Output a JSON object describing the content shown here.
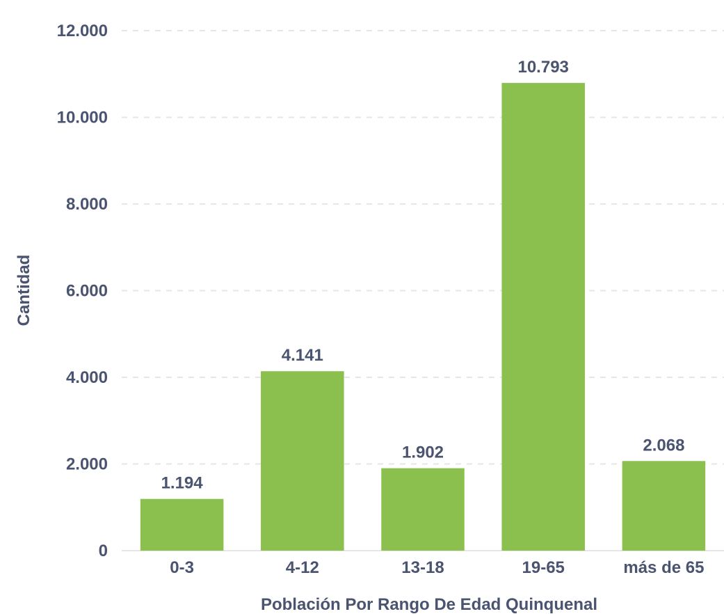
{
  "chart_data": {
    "type": "bar",
    "categories": [
      "0-3",
      "4-12",
      "13-18",
      "19-65",
      "más de 65"
    ],
    "values": [
      1194,
      4141,
      1902,
      10793,
      2068
    ],
    "data_labels": [
      "1.194",
      "4.141",
      "1.902",
      "10.793",
      "2.068"
    ],
    "xlabel": "Población Por Rango De Edad Quinquenal",
    "ylabel": "Cantidad",
    "ylim": [
      0,
      12000
    ],
    "yticks": [
      0,
      2000,
      4000,
      6000,
      8000,
      10000,
      12000
    ],
    "ytick_labels": [
      "0",
      "2.000",
      "4.000",
      "6.000",
      "8.000",
      "10.000",
      "12.000"
    ],
    "grid": true,
    "legend": "none",
    "bar_color": "#8bc04f"
  }
}
